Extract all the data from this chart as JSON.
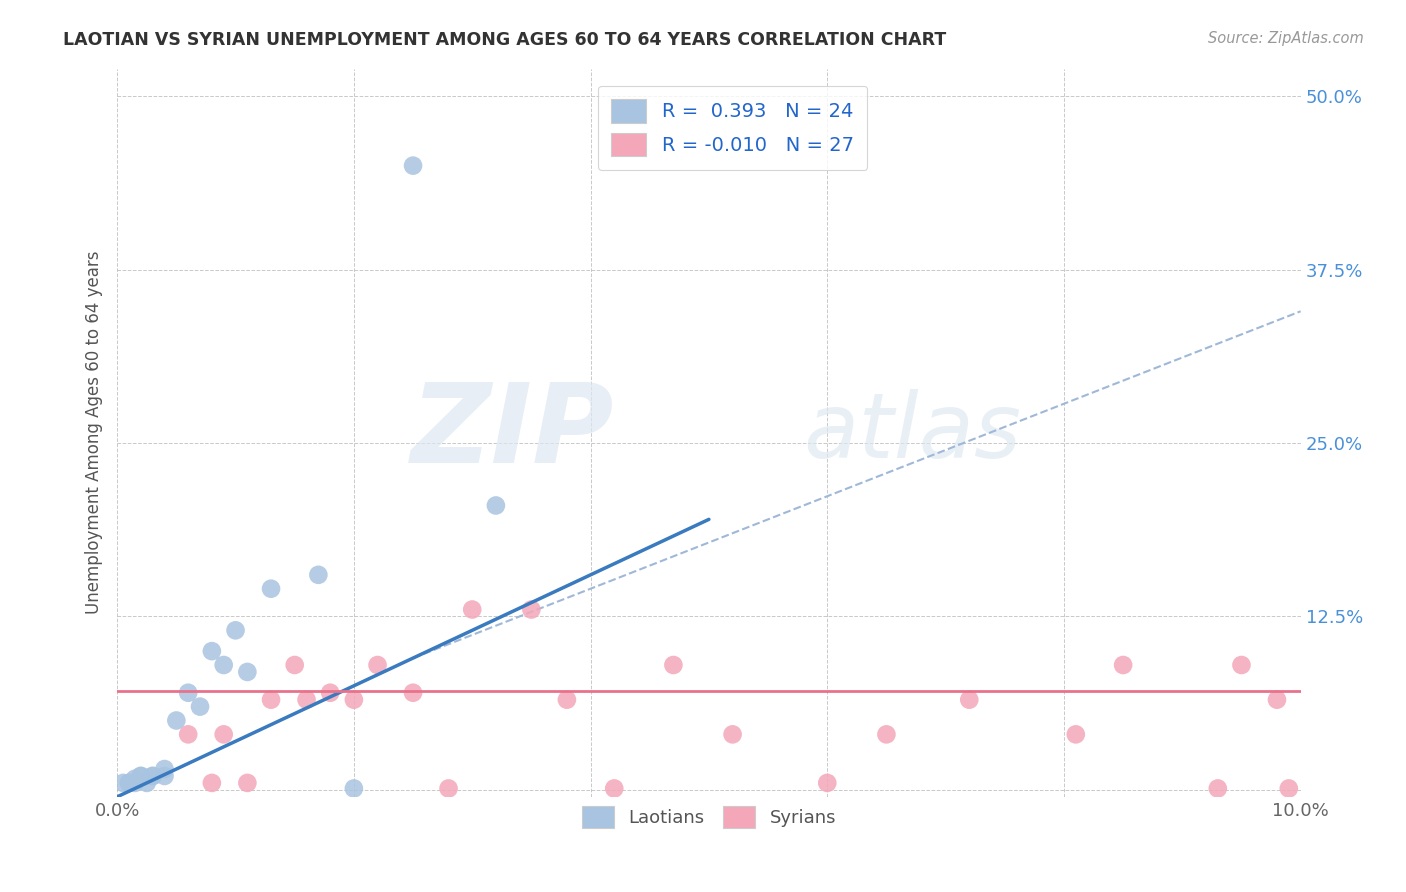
{
  "title": "LAOTIAN VS SYRIAN UNEMPLOYMENT AMONG AGES 60 TO 64 YEARS CORRELATION CHART",
  "source": "Source: ZipAtlas.com",
  "ylabel": "Unemployment Among Ages 60 to 64 years",
  "xlim": [
    0.0,
    0.1
  ],
  "ylim": [
    -0.005,
    0.52
  ],
  "xticks": [
    0.0,
    0.02,
    0.04,
    0.06,
    0.08,
    0.1
  ],
  "yticks": [
    0.0,
    0.125,
    0.25,
    0.375,
    0.5
  ],
  "xtick_labels": [
    "0.0%",
    "",
    "",
    "",
    "",
    "10.0%"
  ],
  "ytick_labels": [
    "",
    "12.5%",
    "25.0%",
    "37.5%",
    "50.0%"
  ],
  "watermark_zip": "ZIP",
  "watermark_atlas": "atlas",
  "legend_laotian_R": "0.393",
  "legend_laotian_N": "24",
  "legend_syrian_R": "-0.010",
  "legend_syrian_N": "27",
  "laotian_color": "#a8c4e0",
  "syrian_color": "#f4a7b9",
  "laotian_line_color": "#3a7abf",
  "syrian_line_color": "#e8728c",
  "trend_line_color": "#a0b8d8",
  "background_color": "#ffffff",
  "laotian_x": [
    0.0005,
    0.001,
    0.001,
    0.0015,
    0.0015,
    0.002,
    0.002,
    0.0025,
    0.003,
    0.003,
    0.004,
    0.004,
    0.005,
    0.006,
    0.007,
    0.008,
    0.009,
    0.01,
    0.011,
    0.013,
    0.017,
    0.02,
    0.025,
    0.032
  ],
  "laotian_y": [
    0.005,
    0.005,
    0.005,
    0.005,
    0.008,
    0.01,
    0.01,
    0.005,
    0.01,
    0.01,
    0.01,
    0.015,
    0.05,
    0.07,
    0.06,
    0.1,
    0.09,
    0.115,
    0.085,
    0.145,
    0.155,
    0.001,
    0.45,
    0.205
  ],
  "syrian_x": [
    0.006,
    0.008,
    0.009,
    0.011,
    0.013,
    0.015,
    0.016,
    0.018,
    0.02,
    0.022,
    0.025,
    0.028,
    0.03,
    0.035,
    0.038,
    0.042,
    0.047,
    0.052,
    0.06,
    0.065,
    0.072,
    0.081,
    0.085,
    0.093,
    0.095,
    0.098,
    0.099
  ],
  "syrian_y": [
    0.04,
    0.005,
    0.04,
    0.005,
    0.065,
    0.09,
    0.065,
    0.07,
    0.065,
    0.09,
    0.07,
    0.001,
    0.13,
    0.13,
    0.065,
    0.001,
    0.09,
    0.04,
    0.005,
    0.04,
    0.065,
    0.04,
    0.09,
    0.001,
    0.09,
    0.065,
    0.001
  ],
  "blue_line_x": [
    0.0,
    0.05
  ],
  "blue_line_y": [
    -0.005,
    0.195
  ],
  "pink_line_x": [
    0.0,
    0.1
  ],
  "pink_line_y": [
    0.071,
    0.071
  ],
  "dash_line_x": [
    0.025,
    0.1
  ],
  "dash_line_y": [
    0.095,
    0.345
  ]
}
